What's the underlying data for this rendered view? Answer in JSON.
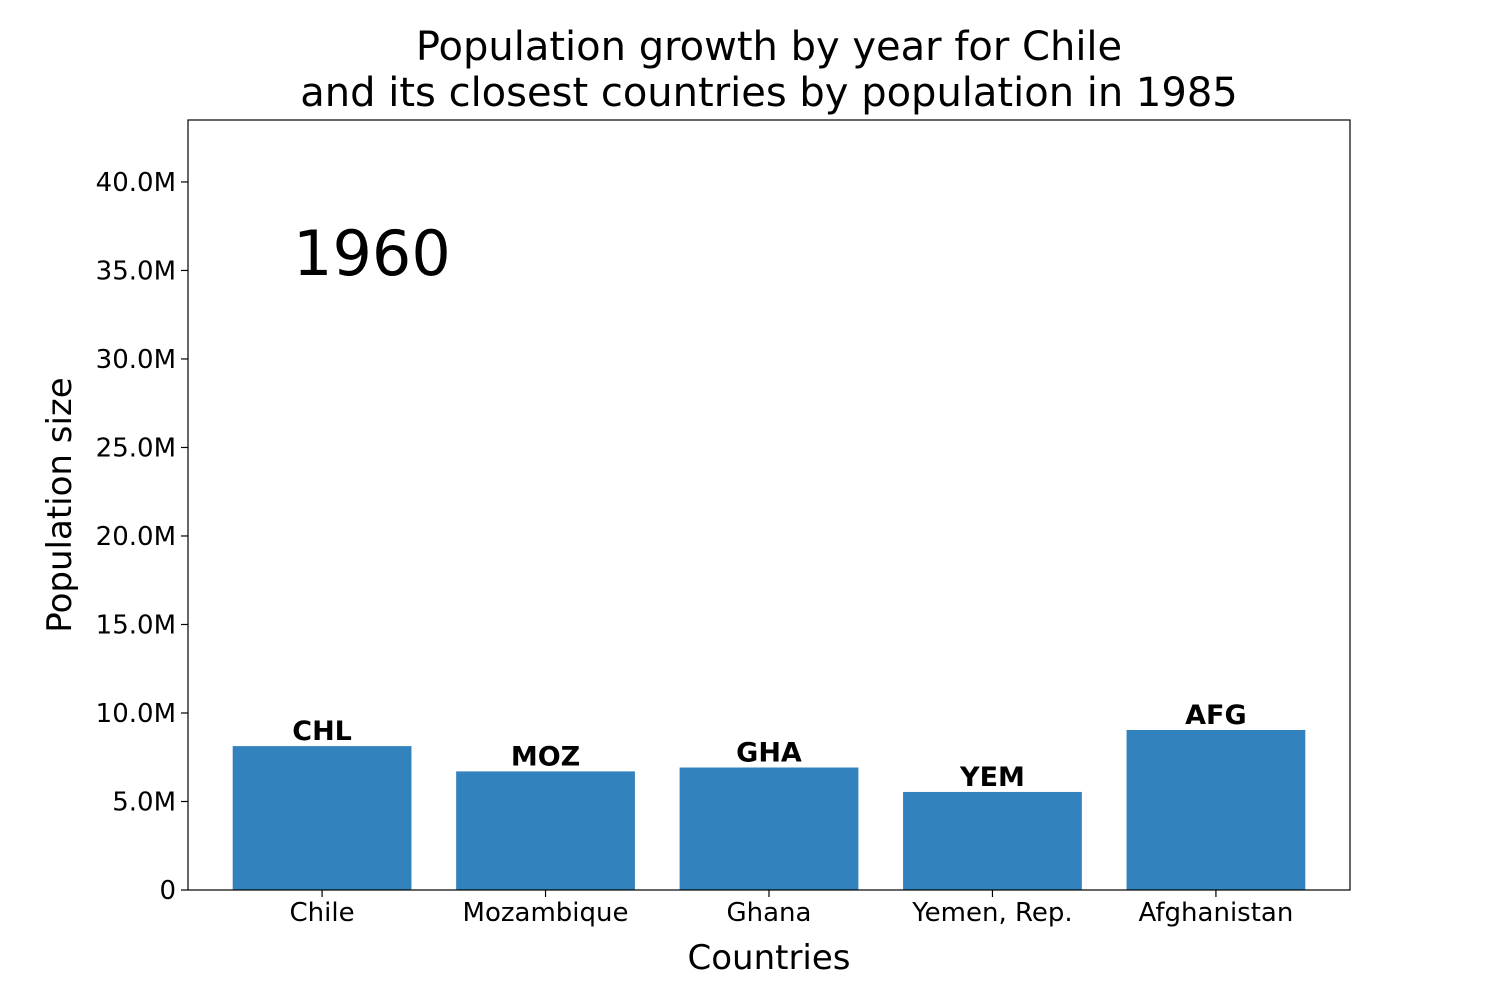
{
  "chart_data": {
    "type": "bar",
    "title_line1": "Population growth by year for Chile",
    "title_line2": "and its closest countries by population in 1985",
    "xlabel": "Countries",
    "ylabel": "Population size",
    "year_annotation": "1960",
    "categories": [
      "Chile",
      "Mozambique",
      "Ghana",
      "Yemen, Rep.",
      "Afghanistan"
    ],
    "codes": [
      "CHL",
      "MOZ",
      "GHA",
      "YEM",
      "AFG"
    ],
    "values": [
      8130000,
      6700000,
      6920000,
      5540000,
      9040000
    ],
    "ylim": [
      0,
      43500000
    ],
    "yticks": [
      0,
      5000000,
      10000000,
      15000000,
      20000000,
      25000000,
      30000000,
      35000000,
      40000000
    ],
    "ytick_labels": [
      "0",
      "5.0M",
      "10.0M",
      "15.0M",
      "20.0M",
      "25.0M",
      "30.0M",
      "35.0M",
      "40.0M"
    ],
    "bar_color": "#3282bd",
    "grid": false,
    "legend": "none"
  }
}
